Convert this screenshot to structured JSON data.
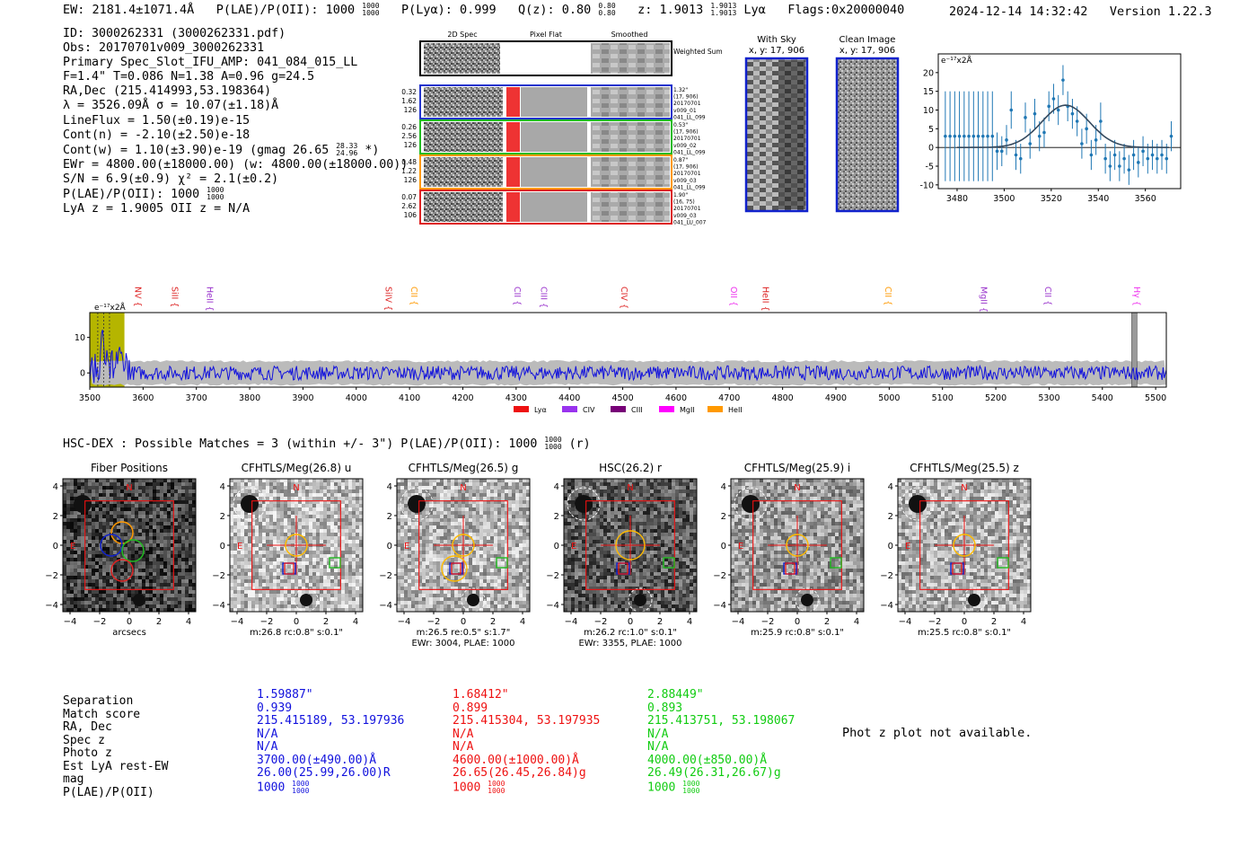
{
  "header": {
    "ew": "EW: 2181.4±1071.4Å",
    "plae": "P(LAE)/P(OII): 1000",
    "plae_sup": "1000",
    "plae_sub": "1000",
    "plya": "P(Lyα): 0.999",
    "qz": "Q(z): 0.80",
    "qz_sup": "0.80",
    "qz_sub": "0.80",
    "z": "z: 1.9013",
    "z_sup": "1.9013",
    "z_sub": "1.9013",
    "z_line": "Lyα",
    "flags": "Flags:0x20000040",
    "timestamp": "2024-12-14 14:32:42",
    "version": "Version 1.22.3"
  },
  "info": {
    "id": "ID: 3000262331 (3000262331.pdf)",
    "obs": "Obs: 20170701v009_3000262331",
    "primary": "Primary Spec_Slot_IFU_AMP: 041_084_015_LL",
    "fiber": "F=1.4\"  T=0.086  N=1.38  A=0.96  g=24.5",
    "radec": "RA,Dec (215.414993,53.198364)",
    "lambda": "λ = 3526.09Å  σ = 10.07(±1.18)Å",
    "lineflux": "LineFlux = 1.50(±0.19)e-15",
    "contn": "Cont(n) = -2.10(±2.50)e-18",
    "contw": "Cont(w) = 1.10(±3.90)e-19 (gmag 26.65",
    "contw_sup": "28.33",
    "contw_sub": "24.96",
    "contw_tail": "*)",
    "ewr": "EWr = 4800.00(±18000.00) (w: 4800.00(±18000.00))",
    "sn": "S/N = 6.9(±0.9)  χ² = 2.1(±0.2)",
    "plae": "P(LAE)/P(OII): 1000",
    "plae_sup": "1000",
    "plae_sub": "1000",
    "lyaz": "LyA z = 1.9005  OII z = N/A"
  },
  "cutouts_2d": {
    "headers": [
      "2D Spec",
      "Pixel Flat",
      "Smoothed"
    ],
    "weighted_label": "Weighted Sum",
    "rows": [
      {
        "left": [
          "0.32",
          "1.62",
          "126"
        ],
        "right": [
          "1.32\"",
          "(17, 906)",
          "20170701",
          "v009_01",
          "041_LL_099"
        ],
        "color": "#2233cc"
      },
      {
        "left": [
          "0.26",
          "2.56",
          "126"
        ],
        "right": [
          "0.53\"",
          "(17, 906)",
          "20170701",
          "v009_02",
          "041_LL_099"
        ],
        "color": "#22bb22"
      },
      {
        "left": [
          "0.48",
          "1.22",
          "126"
        ],
        "right": [
          "0.87\"",
          "(17, 906)",
          "20170701",
          "v009_03",
          "041_LL_099"
        ],
        "color": "#ff9900"
      },
      {
        "left": [
          "0.07",
          "2.62",
          "106"
        ],
        "right": [
          "1.90\"",
          "(16, 75)",
          "20170701",
          "v009_03",
          "041_LU_007"
        ],
        "color": "#dd2222"
      }
    ]
  },
  "sky_panels": {
    "with_sky": {
      "title": "With Sky",
      "coords": "x, y: 17, 906"
    },
    "clean": {
      "title": "Clean Image",
      "coords": "x, y: 17, 906"
    }
  },
  "chart_data": [
    {
      "type": "scatter",
      "title": "",
      "ylabel_text": "e⁻¹⁷x2Å",
      "xlim": [
        3472,
        3575
      ],
      "ylim": [
        -11,
        25
      ],
      "xticks": [
        3480,
        3500,
        3520,
        3540,
        3560
      ],
      "yticks": [
        -10,
        -5,
        0,
        5,
        10,
        15,
        20
      ],
      "points": [
        {
          "x": 3475,
          "y": 3,
          "err": 12
        },
        {
          "x": 3477,
          "y": 3,
          "err": 12
        },
        {
          "x": 3479,
          "y": 3,
          "err": 12
        },
        {
          "x": 3481,
          "y": 3,
          "err": 12
        },
        {
          "x": 3483,
          "y": 3,
          "err": 12
        },
        {
          "x": 3485,
          "y": 3,
          "err": 12
        },
        {
          "x": 3487,
          "y": 3,
          "err": 12
        },
        {
          "x": 3489,
          "y": 3,
          "err": 12
        },
        {
          "x": 3491,
          "y": 3,
          "err": 12
        },
        {
          "x": 3493,
          "y": 3,
          "err": 12
        },
        {
          "x": 3495,
          "y": 3,
          "err": 12
        },
        {
          "x": 3497,
          "y": -1,
          "err": 5
        },
        {
          "x": 3499,
          "y": -1,
          "err": 4
        },
        {
          "x": 3501,
          "y": 2,
          "err": 4
        },
        {
          "x": 3503,
          "y": 10,
          "err": 5
        },
        {
          "x": 3505,
          "y": -2,
          "err": 4
        },
        {
          "x": 3507,
          "y": -3,
          "err": 4
        },
        {
          "x": 3509,
          "y": 8,
          "err": 4
        },
        {
          "x": 3511,
          "y": 1,
          "err": 4
        },
        {
          "x": 3513,
          "y": 9,
          "err": 4
        },
        {
          "x": 3515,
          "y": 3,
          "err": 4
        },
        {
          "x": 3517,
          "y": 4,
          "err": 4
        },
        {
          "x": 3519,
          "y": 11,
          "err": 4
        },
        {
          "x": 3521,
          "y": 13,
          "err": 4
        },
        {
          "x": 3523,
          "y": 10,
          "err": 4
        },
        {
          "x": 3525,
          "y": 18,
          "err": 4
        },
        {
          "x": 3527,
          "y": 11,
          "err": 4
        },
        {
          "x": 3529,
          "y": 9,
          "err": 4
        },
        {
          "x": 3531,
          "y": 7,
          "err": 4
        },
        {
          "x": 3533,
          "y": 1,
          "err": 4
        },
        {
          "x": 3535,
          "y": 5,
          "err": 4
        },
        {
          "x": 3537,
          "y": -2,
          "err": 4
        },
        {
          "x": 3539,
          "y": 2,
          "err": 4
        },
        {
          "x": 3541,
          "y": 7,
          "err": 5
        },
        {
          "x": 3543,
          "y": -3,
          "err": 4
        },
        {
          "x": 3545,
          "y": -5,
          "err": 4
        },
        {
          "x": 3547,
          "y": -2,
          "err": 4
        },
        {
          "x": 3549,
          "y": -5,
          "err": 4
        },
        {
          "x": 3551,
          "y": -3,
          "err": 4
        },
        {
          "x": 3553,
          "y": -6,
          "err": 4
        },
        {
          "x": 3555,
          "y": -2,
          "err": 4
        },
        {
          "x": 3557,
          "y": -4,
          "err": 4
        },
        {
          "x": 3559,
          "y": -1,
          "err": 4
        },
        {
          "x": 3561,
          "y": -3,
          "err": 4
        },
        {
          "x": 3563,
          "y": -2,
          "err": 4
        },
        {
          "x": 3565,
          "y": -3,
          "err": 4
        },
        {
          "x": 3567,
          "y": -2,
          "err": 4
        },
        {
          "x": 3569,
          "y": -3,
          "err": 4
        },
        {
          "x": 3571,
          "y": 3,
          "err": 4
        }
      ],
      "fit": {
        "model": "gaussian",
        "center": 3526.09,
        "sigma": 10.07,
        "amplitude": 11.3,
        "offset": 0,
        "xrange": [
          3480,
          3570
        ]
      }
    },
    {
      "type": "line",
      "title": "",
      "ylabel_text": "e⁻¹⁷x2Å",
      "xlim": [
        3500,
        5520
      ],
      "ylim": [
        -4,
        17
      ],
      "xticks": [
        3500,
        3600,
        3700,
        3800,
        3900,
        4000,
        4100,
        4200,
        4300,
        4400,
        4500,
        4600,
        4700,
        4800,
        4900,
        5000,
        5100,
        5200,
        5300,
        5400,
        5500
      ],
      "yticks": [
        0,
        10
      ],
      "lines": [
        {
          "label": "NV",
          "x": 3590,
          "color": "#dd2222"
        },
        {
          "label": "SiII",
          "x": 3659,
          "color": "#dd2222"
        },
        {
          "label": "HeII",
          "x": 3725,
          "color": "#9933cc"
        },
        {
          "label": "SiIV",
          "x": 4060,
          "color": "#dd2222"
        },
        {
          "label": "CII",
          "x": 4108,
          "color": "#ff9900"
        },
        {
          "label": "CII",
          "x": 4302,
          "color": "#9933cc"
        },
        {
          "label": "CIII",
          "x": 4352,
          "color": "#9933cc"
        },
        {
          "label": "CIV",
          "x": 4502,
          "color": "#dd2222"
        },
        {
          "label": "OII",
          "x": 4708,
          "color": "#ee33ee"
        },
        {
          "label": "HeII",
          "x": 4768,
          "color": "#dd2222"
        },
        {
          "label": "CII",
          "x": 4998,
          "color": "#ff9900"
        },
        {
          "label": "MgII",
          "x": 5177,
          "color": "#9933cc"
        },
        {
          "label": "CII",
          "x": 5298,
          "color": "#9933cc"
        },
        {
          "label": "Hγ",
          "x": 5464,
          "color": "#ee33ee"
        }
      ],
      "legend": [
        {
          "label": "Lyα",
          "color": "#ee1111"
        },
        {
          "label": "CIV",
          "color": "#9933ee"
        },
        {
          "label": "CIII",
          "color": "#770077"
        },
        {
          "label": "MgII",
          "color": "#ff00ff"
        },
        {
          "label": "HeII",
          "color": "#ff9900"
        }
      ],
      "highlight": {
        "from": 3500,
        "to": 3565,
        "color": "#b5b500"
      },
      "error_band": 3
    }
  ],
  "hsc": {
    "title": "HSC-DEX : Possible Matches = 3 (within +/- 3\")  P(LAE)/P(OII): 1000",
    "title_sup": "1000",
    "title_sub": "1000",
    "title_tail": "(r)",
    "axis_ticks": [
      "−4",
      "−2",
      "0",
      "2",
      "4"
    ],
    "cutouts": [
      {
        "title": "Fiber Positions",
        "caption1": "arcsecs",
        "caption2": ""
      },
      {
        "title": "CFHTLS/Meg(26.8) u",
        "caption1": "m:26.8 rc:0.8\"  s:0.1\"",
        "caption2": ""
      },
      {
        "title": "CFHTLS/Meg(26.5) g",
        "caption1": "m:26.5  re:0.5\"  s:1.7\"",
        "caption2": "EWr: 3004, PLAE: 1000"
      },
      {
        "title": "HSC(26.2) r",
        "caption1": "m:26.2 rc:1.0\"  s:0.1\"",
        "caption2": "EWr: 3355, PLAE: 1000"
      },
      {
        "title": "CFHTLS/Meg(25.9) i",
        "caption1": "m:25.9 rc:0.8\"  s:0.1\"",
        "caption2": ""
      },
      {
        "title": "CFHTLS/Meg(25.5) z",
        "caption1": "m:25.5 rc:0.8\"  s:0.1\"",
        "caption2": ""
      }
    ],
    "compass_n": "N",
    "compass_e": "E"
  },
  "matches": {
    "labels": [
      "Separation",
      "Match score",
      "RA, Dec",
      "Spec z",
      "Photo z",
      "Est LyA rest-EW",
      "mag",
      "P(LAE)/P(OII)"
    ],
    "columns": [
      {
        "color": "#1111dd",
        "values": [
          "1.59887\"",
          "0.939",
          "215.415189, 53.197936",
          "N/A",
          "N/A",
          "3700.00(±490.00)Å",
          "26.00(25.99,26.00)R",
          "1000"
        ],
        "plae_sup": "1000",
        "plae_sub": "1000"
      },
      {
        "color": "#ee1111",
        "values": [
          "1.68412\"",
          "0.899",
          "215.415304, 53.197935",
          "N/A",
          "N/A",
          "4600.00(±1000.00)Å",
          "26.65(26.45,26.84)g",
          "1000"
        ],
        "plae_sup": "1000",
        "plae_sub": "1000"
      },
      {
        "color": "#11cc11",
        "values": [
          "2.88449\"",
          "0.893",
          "215.413751, 53.198067",
          "N/A",
          "N/A",
          "4000.00(±850.00)Å",
          "26.49(26.31,26.67)g",
          "1000"
        ],
        "plae_sup": "1000",
        "plae_sub": "1000"
      }
    ],
    "phot_z": "Phot z plot not available."
  }
}
